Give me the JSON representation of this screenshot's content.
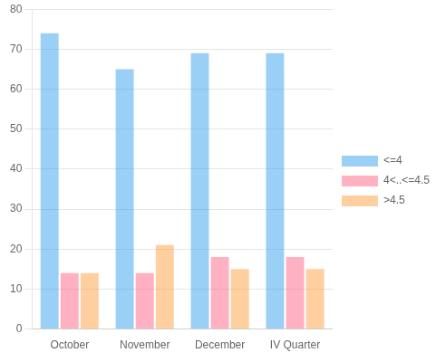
{
  "chart_data": {
    "type": "bar",
    "categories": [
      "October",
      "November",
      "December",
      "IV Quarter"
    ],
    "series": [
      {
        "name": "<=4",
        "values": [
          74,
          65,
          69,
          69
        ]
      },
      {
        "name": "4<..<=4.5",
        "values": [
          14,
          14,
          18,
          18
        ]
      },
      {
        "name": ">4.5",
        "values": [
          14,
          21,
          15,
          15
        ]
      }
    ],
    "ylim": [
      0,
      80
    ],
    "yticks": [
      0,
      10,
      20,
      30,
      40,
      50,
      60,
      70,
      80
    ],
    "grid": true,
    "legend": "right"
  }
}
